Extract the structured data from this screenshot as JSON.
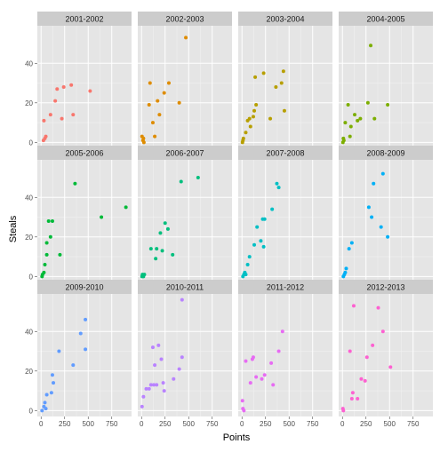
{
  "chart_data": {
    "type": "scatter",
    "facet": "season",
    "xlabel": "Points",
    "ylabel": "Steals",
    "xlim": [
      -40,
      960
    ],
    "ylim": [
      -3,
      59
    ],
    "x_ticks": [
      0,
      250,
      500,
      750
    ],
    "y_ticks": [
      0,
      20,
      40
    ],
    "grid": true,
    "legend": "none",
    "panel_bg": "#e5e5e5",
    "strip_bg": "#cccccc",
    "grid_major": "#ffffff",
    "grid_minor": "#f2f2f2",
    "panels": [
      {
        "label": "2001-2002",
        "color": "#f8766d",
        "points": [
          [
            25,
            1
          ],
          [
            40,
            2
          ],
          [
            30,
            11
          ],
          [
            50,
            3
          ],
          [
            100,
            14
          ],
          [
            150,
            21
          ],
          [
            170,
            27
          ],
          [
            220,
            12
          ],
          [
            240,
            28
          ],
          [
            320,
            29
          ],
          [
            340,
            14
          ],
          [
            520,
            26
          ]
        ]
      },
      {
        "label": "2002-2003",
        "color": "#de8c00",
        "points": [
          [
            5,
            3
          ],
          [
            15,
            1
          ],
          [
            20,
            2
          ],
          [
            25,
            0
          ],
          [
            80,
            19
          ],
          [
            90,
            30
          ],
          [
            120,
            10
          ],
          [
            140,
            3
          ],
          [
            170,
            21
          ],
          [
            190,
            14
          ],
          [
            240,
            25
          ],
          [
            290,
            30
          ],
          [
            400,
            20
          ],
          [
            470,
            53
          ]
        ]
      },
      {
        "label": "2003-2004",
        "color": "#b79f00",
        "points": [
          [
            5,
            0
          ],
          [
            10,
            1
          ],
          [
            15,
            2
          ],
          [
            40,
            5
          ],
          [
            60,
            11
          ],
          [
            80,
            12
          ],
          [
            90,
            8
          ],
          [
            120,
            13
          ],
          [
            130,
            16
          ],
          [
            150,
            19
          ],
          [
            140,
            33
          ],
          [
            230,
            35
          ],
          [
            300,
            12
          ],
          [
            360,
            28
          ],
          [
            420,
            30
          ],
          [
            440,
            36
          ],
          [
            450,
            16
          ]
        ]
      },
      {
        "label": "2004-2005",
        "color": "#7cae00",
        "points": [
          [
            5,
            0
          ],
          [
            10,
            2
          ],
          [
            15,
            1
          ],
          [
            30,
            10
          ],
          [
            60,
            19
          ],
          [
            80,
            3
          ],
          [
            90,
            8
          ],
          [
            130,
            14
          ],
          [
            160,
            11
          ],
          [
            190,
            12
          ],
          [
            270,
            20
          ],
          [
            300,
            49
          ],
          [
            340,
            12
          ],
          [
            480,
            19
          ]
        ]
      },
      {
        "label": "2005-2006",
        "color": "#00ba38",
        "points": [
          [
            10,
            0
          ],
          [
            15,
            1
          ],
          [
            30,
            2
          ],
          [
            40,
            6
          ],
          [
            60,
            11
          ],
          [
            60,
            17
          ],
          [
            80,
            28
          ],
          [
            100,
            20
          ],
          [
            120,
            28
          ],
          [
            200,
            11
          ],
          [
            360,
            47
          ],
          [
            640,
            30
          ],
          [
            900,
            35
          ]
        ]
      },
      {
        "label": "2006-2007",
        "color": "#00bf7d",
        "points": [
          [
            5,
            0
          ],
          [
            10,
            1
          ],
          [
            20,
            0
          ],
          [
            30,
            1
          ],
          [
            100,
            14
          ],
          [
            150,
            9
          ],
          [
            160,
            14
          ],
          [
            200,
            22
          ],
          [
            220,
            13
          ],
          [
            250,
            27
          ],
          [
            280,
            24
          ],
          [
            330,
            11
          ],
          [
            420,
            48
          ],
          [
            600,
            50
          ]
        ]
      },
      {
        "label": "2007-2008",
        "color": "#00bfc4",
        "points": [
          [
            10,
            0
          ],
          [
            20,
            1
          ],
          [
            30,
            2
          ],
          [
            40,
            1
          ],
          [
            60,
            6
          ],
          [
            80,
            10
          ],
          [
            130,
            16
          ],
          [
            160,
            25
          ],
          [
            200,
            18
          ],
          [
            220,
            29
          ],
          [
            240,
            29
          ],
          [
            230,
            15
          ],
          [
            320,
            34
          ],
          [
            370,
            47
          ],
          [
            390,
            45
          ]
        ]
      },
      {
        "label": "2008-2009",
        "color": "#00b0f6",
        "points": [
          [
            10,
            0
          ],
          [
            20,
            1
          ],
          [
            30,
            2
          ],
          [
            40,
            4
          ],
          [
            70,
            14
          ],
          [
            100,
            17
          ],
          [
            280,
            35
          ],
          [
            310,
            30
          ],
          [
            330,
            47
          ],
          [
            410,
            25
          ],
          [
            430,
            52
          ],
          [
            480,
            20
          ]
        ]
      },
      {
        "label": "2009-2010",
        "color": "#619cff",
        "points": [
          [
            10,
            0
          ],
          [
            30,
            2
          ],
          [
            40,
            4
          ],
          [
            50,
            1
          ],
          [
            60,
            8
          ],
          [
            110,
            9
          ],
          [
            130,
            14
          ],
          [
            120,
            18
          ],
          [
            190,
            30
          ],
          [
            340,
            23
          ],
          [
            420,
            39
          ],
          [
            470,
            31
          ],
          [
            470,
            46
          ]
        ]
      },
      {
        "label": "2010-2011",
        "color": "#b983ff",
        "points": [
          [
            5,
            2
          ],
          [
            20,
            7
          ],
          [
            50,
            11
          ],
          [
            80,
            11
          ],
          [
            100,
            13
          ],
          [
            120,
            32
          ],
          [
            130,
            13
          ],
          [
            140,
            23
          ],
          [
            160,
            13
          ],
          [
            180,
            33
          ],
          [
            210,
            26
          ],
          [
            230,
            14
          ],
          [
            240,
            10
          ],
          [
            340,
            16
          ],
          [
            400,
            21
          ],
          [
            430,
            27
          ],
          [
            430,
            56
          ]
        ]
      },
      {
        "label": "2011-2012",
        "color": "#e76bf3",
        "points": [
          [
            5,
            5
          ],
          [
            10,
            1
          ],
          [
            20,
            0
          ],
          [
            40,
            25
          ],
          [
            90,
            14
          ],
          [
            110,
            26
          ],
          [
            120,
            27
          ],
          [
            150,
            17
          ],
          [
            210,
            16
          ],
          [
            240,
            18
          ],
          [
            310,
            24
          ],
          [
            330,
            13
          ],
          [
            390,
            30
          ],
          [
            430,
            40
          ]
        ]
      },
      {
        "label": "2012-2013",
        "color": "#fd61d1",
        "points": [
          [
            5,
            1
          ],
          [
            10,
            0
          ],
          [
            80,
            30
          ],
          [
            100,
            6
          ],
          [
            110,
            9
          ],
          [
            120,
            53
          ],
          [
            160,
            6
          ],
          [
            200,
            16
          ],
          [
            240,
            15
          ],
          [
            260,
            27
          ],
          [
            320,
            33
          ],
          [
            380,
            52
          ],
          [
            430,
            40
          ],
          [
            510,
            22
          ]
        ]
      }
    ]
  }
}
